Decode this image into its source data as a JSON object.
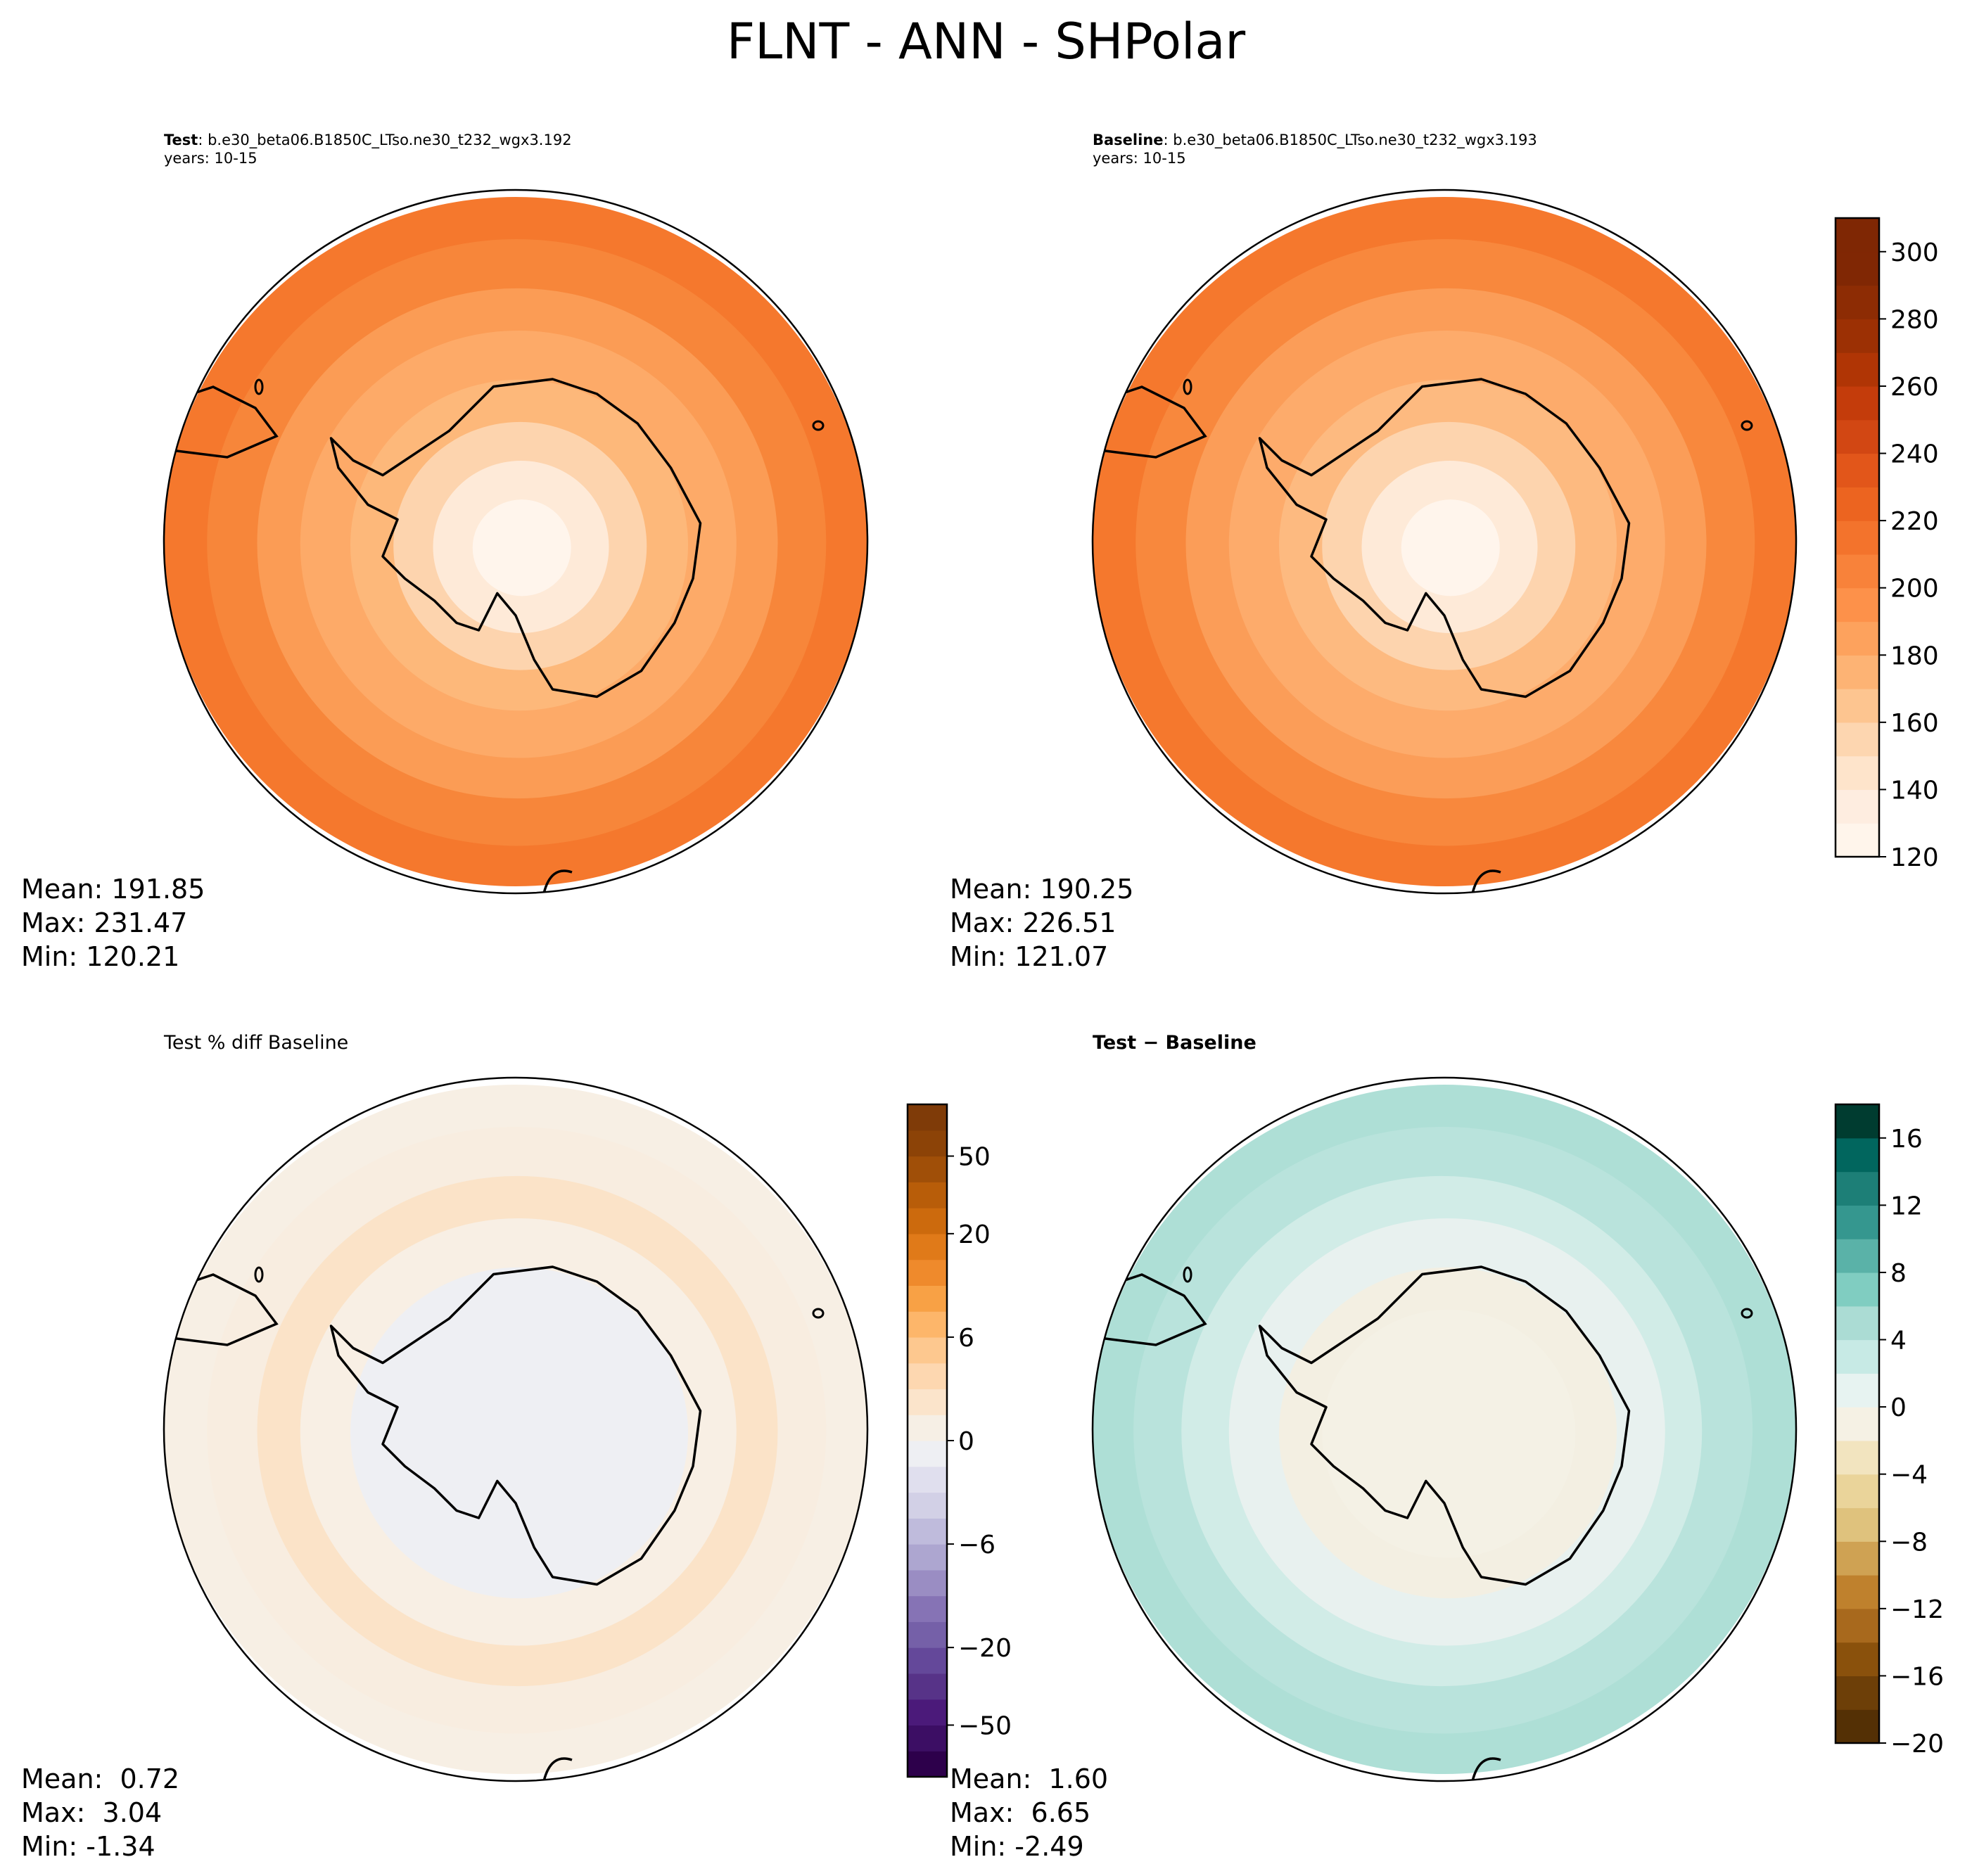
{
  "figure": {
    "title": "FLNT - ANN - SHPolar"
  },
  "panels": {
    "test": {
      "label": "Test",
      "case": ": b.e30_beta06.B1850C_LTso.ne30_t232_wgx3.192",
      "years": "years: 10-15",
      "mean": "Mean: 191.85",
      "max": "Max: 231.47",
      "min": "Min: 120.21"
    },
    "baseline": {
      "label": "Baseline",
      "case": ": b.e30_beta06.B1850C_LTso.ne30_t232_wgx3.193",
      "years": "years: 10-15",
      "mean": "Mean: 190.25",
      "max": "Max: 226.51",
      "min": "Min: 121.07"
    },
    "pct_diff": {
      "title": "Test % diff Baseline",
      "mean": "Mean:  0.72",
      "max": "Max:  3.04",
      "min": "Min: -1.34"
    },
    "diff": {
      "title": "Test − Baseline",
      "mean": "Mean:  1.60",
      "max": "Max:  6.65",
      "min": "Min: -2.49"
    }
  },
  "chart_data": [
    {
      "type": "heatmap",
      "projection": "south-polar-stereographic",
      "panel": "Test",
      "colormap": "Oranges",
      "colorbar": {
        "levels": [
          120,
          130,
          140,
          150,
          160,
          170,
          180,
          190,
          200,
          210,
          220,
          230,
          240,
          250,
          260,
          270,
          280,
          290,
          300,
          310
        ],
        "ticks": [
          120,
          140,
          160,
          180,
          200,
          220,
          240,
          260,
          280,
          300
        ],
        "colors": [
          "#fff5eb",
          "#feede0",
          "#fee4cb",
          "#fdd6b0",
          "#fdc590",
          "#fdb374",
          "#fda25d",
          "#fd914a",
          "#f8823a",
          "#f3732c",
          "#ec6420",
          "#e2561a",
          "#d24713",
          "#c43c0b",
          "#b03505",
          "#9c3004",
          "#8d2c04",
          "#802704",
          "#7f2704"
        ]
      },
      "stats": {
        "mean": 191.85,
        "max": 231.47,
        "min": 120.21
      }
    },
    {
      "type": "heatmap",
      "projection": "south-polar-stereographic",
      "panel": "Baseline",
      "colormap": "Oranges",
      "stats": {
        "mean": 190.25,
        "max": 226.51,
        "min": 121.07
      }
    },
    {
      "type": "heatmap",
      "projection": "south-polar-stereographic",
      "panel": "Test % diff Baseline",
      "colormap": "PuOr_r",
      "colorbar": {
        "levels": [
          -100,
          -75,
          -50,
          -40,
          -30,
          -20,
          -15,
          -10,
          -8,
          -6,
          -4,
          -2,
          -1,
          0,
          1,
          2,
          4,
          6,
          8,
          10,
          15,
          20,
          30,
          40,
          50,
          75,
          100
        ],
        "ticks": [
          -50,
          -20,
          -6,
          0,
          6,
          20,
          50
        ],
        "colors": [
          "#2d004b",
          "#3c0e64",
          "#4b1a7a",
          "#573388",
          "#64489a",
          "#7560a8",
          "#8673b5",
          "#9a8dc3",
          "#ada6d0",
          "#bfbbdc",
          "#d2d0e6",
          "#e0dfee",
          "#eeeff3",
          "#f6efe5",
          "#fbe4cb",
          "#fdd7b0",
          "#fdc88f",
          "#fdb66a",
          "#f8a145",
          "#ef8a2c",
          "#e07a19",
          "#cc6a0d",
          "#b85d09",
          "#a04f08",
          "#8c4307",
          "#7f3b08"
        ]
      },
      "stats": {
        "mean": 0.72,
        "max": 3.04,
        "min": -1.34
      }
    },
    {
      "type": "heatmap",
      "projection": "south-polar-stereographic",
      "panel": "Test − Baseline",
      "colormap": "BrBG",
      "colorbar": {
        "levels": [
          -20,
          -18,
          -16,
          -14,
          -12,
          -10,
          -8,
          -6,
          -4,
          -2,
          0,
          2,
          4,
          6,
          8,
          10,
          12,
          14,
          16,
          18
        ],
        "ticks": [
          -20,
          -16,
          -12,
          -8,
          -4,
          0,
          4,
          8,
          12,
          16
        ],
        "colors": [
          "#543005",
          "#6d3f08",
          "#8a510c",
          "#a8691d",
          "#bf812d",
          "#cfa253",
          "#dfc27d",
          "#ead49a",
          "#f2e4bf",
          "#f5f1e4",
          "#e7f3f1",
          "#c7eae5",
          "#abdcd4",
          "#80cdc1",
          "#5ab2a8",
          "#35978f",
          "#1d7f77",
          "#01665e",
          "#003c30"
        ]
      },
      "stats": {
        "mean": 1.6,
        "max": 6.65,
        "min": -2.49
      }
    }
  ]
}
